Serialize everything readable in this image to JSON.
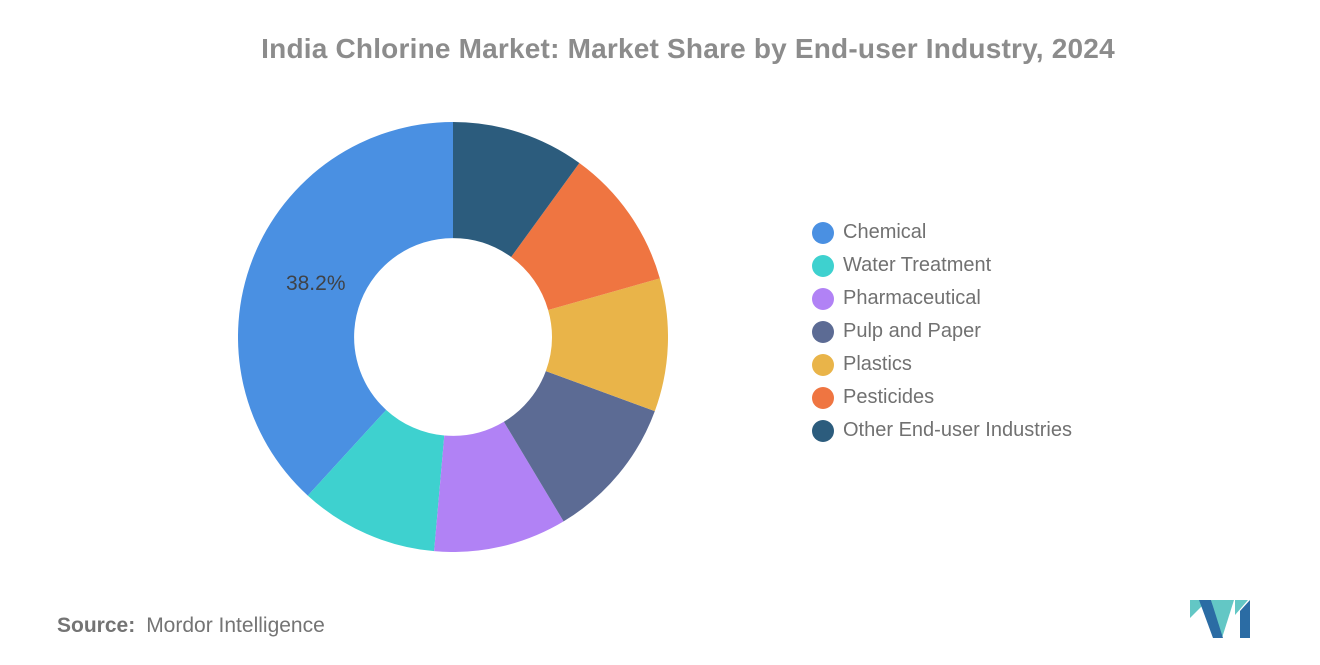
{
  "title": "India Chlorine Market: Market Share by End-user Industry, 2024",
  "chart_data": {
    "type": "pie",
    "subtype": "donut",
    "title": "India Chlorine Market: Market Share by End-user Industry, 2024",
    "categories": [
      "Chemical",
      "Water Treatment",
      "Pharmaceutical",
      "Pulp and Paper",
      "Plastics",
      "Pesticides",
      "Other End-user Industries"
    ],
    "values": [
      38.2,
      10.4,
      10.0,
      10.8,
      10.0,
      10.6,
      10.0
    ],
    "colors": [
      "#4A90E2",
      "#3ED1CF",
      "#B182F5",
      "#5C6B94",
      "#E9B449",
      "#EF7541",
      "#2C5C7D"
    ],
    "start_angle_deg": 0,
    "direction": "counterclockwise",
    "inner_radius_ratio": 0.46,
    "data_labels": [
      {
        "index": 0,
        "text": "38.2%"
      }
    ],
    "data_label_color": "#3F4247",
    "legend_position": "right",
    "grid": false
  },
  "source": {
    "label": "Source:",
    "value": "Mordor Intelligence"
  },
  "logo": {
    "name": "mordor-intelligence-logo",
    "teal": "#63C7C5",
    "blue": "#2B6CA4"
  }
}
